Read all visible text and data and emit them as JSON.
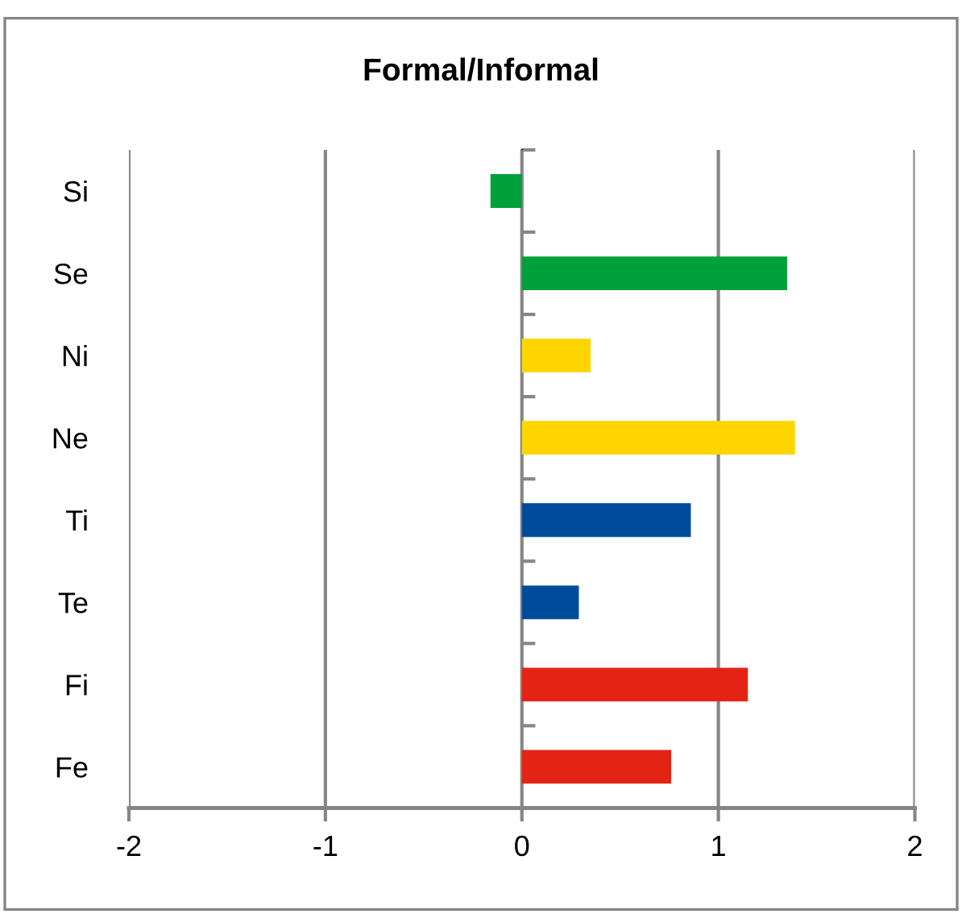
{
  "chart_data": {
    "type": "bar",
    "orientation": "horizontal",
    "title": "Formal/Informal",
    "categories": [
      "Si",
      "Se",
      "Ni",
      "Ne",
      "Ti",
      "Te",
      "Fi",
      "Fe"
    ],
    "values": [
      -0.16,
      1.35,
      0.35,
      1.39,
      0.86,
      0.29,
      1.15,
      0.76
    ],
    "colors": [
      "#00a03c",
      "#00a03c",
      "#ffd500",
      "#ffd500",
      "#004c9c",
      "#004c9c",
      "#e32414",
      "#e32414"
    ],
    "xlim": [
      -2,
      2
    ],
    "xticks": [
      -2,
      -1,
      0,
      1,
      2
    ],
    "grid": "x"
  }
}
